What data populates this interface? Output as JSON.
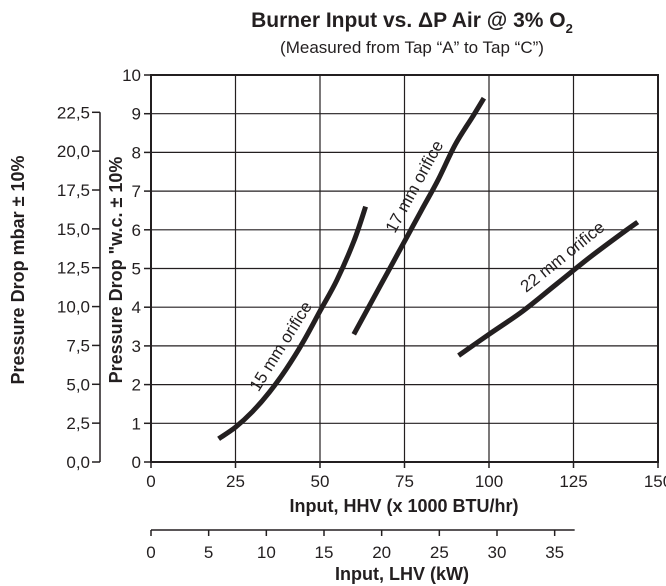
{
  "chart_data": {
    "type": "line",
    "title": "Burner Input vs. ΔP Air @ 3% O",
    "title_subscript": "2",
    "subtitle": "(Measured from Tap “A” to Tap “C”)",
    "xlabel": "Input, HHV (x 1000 BTU/hr)",
    "xlim": [
      0,
      150
    ],
    "x_ticks": [
      "0",
      "25",
      "50",
      "75",
      "100",
      "125",
      "150"
    ],
    "secondary_xlabel": "Input, LHV (kW)",
    "secondary_xlim_kW": [
      0,
      43.96
    ],
    "secondary_x_ticks": [
      "0",
      "5",
      "10",
      "15",
      "20",
      "25",
      "30",
      "35"
    ],
    "ylabel": "Pressure Drop \"w.c. ± 10%",
    "ylim": [
      0,
      10
    ],
    "y_ticks": [
      "0",
      "1",
      "2",
      "3",
      "4",
      "5",
      "6",
      "7",
      "8",
      "9",
      "10"
    ],
    "secondary_ylabel": "Pressure Drop mbar ± 10%",
    "secondary_ylim": [
      0,
      24.9
    ],
    "secondary_y_ticks": [
      "0,0",
      "2,5",
      "5,0",
      "7,5",
      "10,0",
      "12,5",
      "15,0",
      "17,5",
      "20,0",
      "22,5"
    ],
    "grid": true,
    "series": [
      {
        "name": "15 mm orifice",
        "x": [
          20,
          25,
          30,
          35,
          40,
          45,
          50,
          55,
          60,
          63.5
        ],
        "y": [
          0.6,
          0.9,
          1.3,
          1.8,
          2.4,
          3.1,
          3.9,
          4.7,
          5.7,
          6.6
        ]
      },
      {
        "name": "17 mm orifice",
        "x": [
          60,
          65,
          70,
          75,
          80,
          85,
          90,
          95,
          98.5
        ],
        "y": [
          3.3,
          4.1,
          4.9,
          5.7,
          6.5,
          7.3,
          8.2,
          8.9,
          9.4
        ]
      },
      {
        "name": "22 mm orifice",
        "x": [
          91,
          100,
          110,
          120,
          130,
          140,
          144
        ],
        "y": [
          2.75,
          3.3,
          3.9,
          4.6,
          5.3,
          5.95,
          6.2
        ]
      }
    ]
  }
}
